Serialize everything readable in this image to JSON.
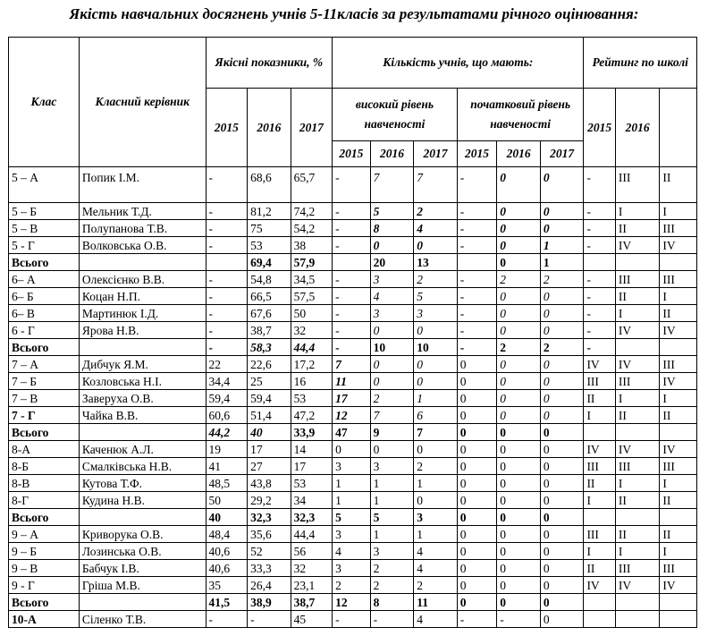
{
  "title": "Якість навчальних  досягнень учнів 5-11класів за результатами річного оцінювання:",
  "headers": {
    "class": "Клас",
    "teacher": "Класний керівник",
    "quality": "Якісні показники, %",
    "count": "Кількість учнів, що мають:",
    "high": "високий рівень навченості",
    "initial": "початковий рівень навченості",
    "rating": "Рейтинг по школі",
    "y2015": "2015",
    "y2016": "2016",
    "y2017": "2017",
    "r2015": "2015"
  },
  "rows": [
    {
      "c": [
        "5 – А",
        "Попик І.М.",
        "-",
        "68,6",
        "65,7",
        "-",
        "7",
        "7",
        "-",
        "0",
        "0",
        "-",
        "ІІІ",
        "ІІ"
      ],
      "s": [
        "",
        "",
        "",
        "",
        "",
        "",
        "i",
        "i",
        "",
        "bi",
        "bi",
        "",
        "",
        ""
      ],
      "tall": true
    },
    {
      "c": [
        "5 – Б",
        "Мельник Т.Д.",
        "-",
        "81,2",
        "74,2",
        "-",
        "5",
        "2",
        "-",
        "0",
        "0",
        "-",
        "І",
        "І"
      ],
      "s": [
        "",
        "",
        "",
        "",
        "",
        "",
        "bi",
        "bi",
        "",
        "bi",
        "bi",
        "",
        "",
        ""
      ]
    },
    {
      "c": [
        "5 – В",
        "Полупанова Т.В.",
        "-",
        "75",
        "54,2",
        "-",
        "8",
        "4",
        "-",
        "0",
        "0",
        "-",
        "ІІ",
        "ІІІ"
      ],
      "s": [
        "",
        "",
        "",
        "",
        "",
        "",
        "bi",
        "bi",
        "",
        "bi",
        "bi",
        "",
        "",
        ""
      ]
    },
    {
      "c": [
        "5 -  Г",
        "Волковська О.В.",
        "-",
        "53",
        "38",
        "-",
        "0",
        "0",
        "-",
        "0",
        "1",
        "-",
        "IV",
        "IV"
      ],
      "s": [
        "",
        "",
        "",
        "",
        "",
        "",
        "bi",
        "bi",
        "",
        "bi",
        "bi",
        "",
        "",
        ""
      ]
    },
    {
      "c": [
        "Всього",
        "",
        "",
        "69,4",
        "57,9",
        "",
        "20",
        "13",
        "",
        "0",
        "1",
        "",
        "",
        ""
      ],
      "s": [
        "b",
        "",
        "",
        "",
        "",
        "",
        "b",
        "b",
        "",
        "b",
        "b",
        "",
        "",
        ""
      ]
    },
    {
      "c": [
        "6– А",
        "Олексієнко В.В.",
        "-",
        "54,8",
        "34,5",
        "-",
        "3",
        "2",
        "-",
        "2",
        "2",
        "-",
        "ІІІ",
        "ІІІ"
      ],
      "s": [
        "",
        "",
        "",
        "",
        "",
        "",
        "i",
        "i",
        "",
        "i",
        "i",
        "",
        "",
        ""
      ]
    },
    {
      "c": [
        "6– Б",
        "Коцан Н.П.",
        "-",
        "66,5",
        "57,5",
        "-",
        "4",
        "5",
        "-",
        "0",
        "0",
        "-",
        "ІІ",
        "І"
      ],
      "s": [
        "",
        "",
        "",
        "",
        "",
        "",
        "i",
        "i",
        "",
        "i",
        "i",
        "",
        "",
        ""
      ]
    },
    {
      "c": [
        "6– В",
        "Мартинюк І.Д.",
        "-",
        "67,6",
        "50",
        "-",
        "3",
        "3",
        "-",
        "0",
        "0",
        "-",
        "І",
        "ІІ"
      ],
      "s": [
        "",
        "",
        "",
        "",
        "",
        "",
        "i",
        "i",
        "",
        "i",
        "i",
        "",
        "",
        ""
      ]
    },
    {
      "c": [
        "6 - Г",
        "Ярова Н.В.",
        "-",
        "38,7",
        "32",
        "-",
        "0",
        "0",
        "-",
        "0",
        "0",
        "-",
        "IV",
        "IV"
      ],
      "s": [
        "",
        "",
        "",
        "",
        "",
        "",
        "i",
        "i",
        "",
        "i",
        "i",
        "",
        "",
        ""
      ]
    },
    {
      "c": [
        "Всього",
        "",
        "-",
        "58,3",
        "44,4",
        "-",
        "10",
        "10",
        "-",
        "2",
        "2",
        "-",
        "",
        ""
      ],
      "s": [
        "b",
        "",
        "",
        "bi",
        "bi",
        "",
        "b",
        "b",
        "",
        "b",
        "b",
        "",
        "",
        ""
      ]
    },
    {
      "c": [
        "7 – А",
        "Дибчук Я.М.",
        "22",
        "22,6",
        "17,2",
        "7",
        "0",
        "0",
        "0",
        "0",
        "0",
        "IV",
        "IV",
        "ІІІ"
      ],
      "s": [
        "",
        "",
        "",
        "",
        "",
        "bi",
        "i",
        "i",
        "",
        "i",
        "i",
        "",
        "",
        ""
      ]
    },
    {
      "c": [
        "7 – Б",
        "Козловська Н.І.",
        "34,4",
        "25",
        "16",
        "11",
        "0",
        "0",
        "0",
        "0",
        "0",
        "ІІІ",
        "ІІІ",
        "IV"
      ],
      "s": [
        "",
        "",
        "",
        "",
        "",
        "bi",
        "i",
        "i",
        "",
        "i",
        "i",
        "",
        "",
        ""
      ]
    },
    {
      "c": [
        "7 – В",
        "Заверуха О.В.",
        "59,4",
        "59,4",
        "53",
        "17",
        "2",
        "1",
        "0",
        "0",
        "0",
        "ІІ",
        "І",
        "І"
      ],
      "s": [
        "",
        "",
        "",
        "",
        "",
        "bi",
        "i",
        "i",
        "",
        "i",
        "i",
        "",
        "",
        ""
      ]
    },
    {
      "c": [
        "7 -  Г",
        "Чайка В.В.",
        "60,6",
        "51,4",
        "47,2",
        "12",
        "7",
        "6",
        "0",
        "0",
        "0",
        "І",
        "ІІ",
        "ІІ"
      ],
      "s": [
        "b",
        "",
        "",
        "",
        "",
        "bi",
        "i",
        "i",
        "",
        "i",
        "i",
        "",
        "",
        ""
      ]
    },
    {
      "c": [
        "Всього",
        "",
        "44,2",
        "40",
        "33,9",
        "47",
        "9",
        "7",
        "0",
        "0",
        "0",
        "",
        "",
        ""
      ],
      "s": [
        "b",
        "",
        "bi",
        "bi",
        "b",
        "b",
        "b",
        "b",
        "b",
        "b",
        "b",
        "",
        "",
        ""
      ]
    },
    {
      "c": [
        "8-А",
        "Каченюк А.Л.",
        "19",
        "17",
        "14",
        "0",
        "0",
        "0",
        "0",
        "0",
        "0",
        "IV",
        "IV",
        "IV"
      ],
      "s": [
        "",
        "",
        "",
        "",
        "",
        "",
        "",
        "",
        "",
        "",
        "",
        "",
        "",
        ""
      ]
    },
    {
      "c": [
        "8-Б",
        "Смалківська Н.В.",
        "41",
        "27",
        "17",
        "3",
        "3",
        "2",
        "0",
        "0",
        "0",
        "ІІІ",
        "ІІІ",
        "ІІІ"
      ],
      "s": [
        "",
        "",
        "",
        "",
        "",
        "",
        "",
        "",
        "",
        "",
        "",
        "",
        "",
        ""
      ]
    },
    {
      "c": [
        "8-В",
        "Кутова Т.Ф.",
        "48,5",
        "43,8",
        "53",
        "1",
        "1",
        "1",
        "0",
        "0",
        "0",
        "ІІ",
        "І",
        "І"
      ],
      "s": [
        "",
        "",
        "",
        "",
        "",
        "",
        "",
        "",
        "",
        "",
        "",
        "",
        "",
        ""
      ]
    },
    {
      "c": [
        "8-Г",
        "Кудина Н.В.",
        "50",
        "29,2",
        "34",
        "1",
        "1",
        "0",
        "0",
        "0",
        "0",
        "І",
        "ІІ",
        "ІІ"
      ],
      "s": [
        "",
        "",
        "",
        "",
        "",
        "",
        "",
        "",
        "",
        "",
        "",
        "",
        "",
        ""
      ]
    },
    {
      "c": [
        "Всього",
        "",
        "40",
        "32,3",
        "32,3",
        "5",
        "5",
        "3",
        "0",
        "0",
        "0",
        "",
        "",
        ""
      ],
      "s": [
        "b",
        "",
        "b",
        "b",
        "b",
        "b",
        "b",
        "b",
        "b",
        "b",
        "b",
        "",
        "",
        ""
      ]
    },
    {
      "c": [
        "9 – А",
        "Криворука О.В.",
        "48,4",
        "35,6",
        "44,4",
        "3",
        "1",
        "1",
        "0",
        "0",
        "0",
        "ІІІ",
        "ІІ",
        "ІІ"
      ],
      "s": [
        "",
        "",
        "",
        "",
        "",
        "",
        "",
        "",
        "",
        "",
        "",
        "",
        "",
        ""
      ]
    },
    {
      "c": [
        "9 – Б",
        "Лозинська О.В.",
        "40,6",
        "52",
        "56",
        "4",
        "3",
        "4",
        "0",
        "0",
        "0",
        "І",
        "І",
        "І"
      ],
      "s": [
        "",
        "",
        "",
        "",
        "",
        "",
        "",
        "",
        "",
        "",
        "",
        "",
        "",
        ""
      ]
    },
    {
      "c": [
        "9 – В",
        "Бабчук І.В.",
        "40,6",
        "33,3",
        "32",
        "3",
        "2",
        "4",
        "0",
        "0",
        "0",
        "ІІ",
        "ІІІ",
        "ІІІ"
      ],
      "s": [
        "",
        "",
        "",
        "",
        "",
        "",
        "",
        "",
        "",
        "",
        "",
        "",
        "",
        ""
      ]
    },
    {
      "c": [
        "9 - Г",
        "Гріша М.В.",
        "35",
        "26,4",
        "23,1",
        "2",
        "2",
        "2",
        "0",
        "0",
        "0",
        "IV",
        "IV",
        "IV"
      ],
      "s": [
        "",
        "",
        "",
        "",
        "",
        "",
        "",
        "",
        "",
        "",
        "",
        "",
        "",
        ""
      ]
    },
    {
      "c": [
        "Всього",
        "",
        "41,5",
        "38,9",
        "38,7",
        "12",
        "8",
        "11",
        "0",
        "0",
        "0",
        "",
        "",
        ""
      ],
      "s": [
        "b",
        "",
        "b",
        "b",
        "b",
        "b",
        "b",
        "b",
        "b",
        "b",
        "b",
        "",
        "",
        ""
      ]
    },
    {
      "c": [
        "10-А",
        "Сіленко Т.В.",
        "-",
        "-",
        "45",
        "-",
        "-",
        "4",
        "-",
        "-",
        "0",
        "",
        "",
        ""
      ],
      "s": [
        "b",
        "",
        "",
        "",
        "",
        "",
        "",
        "",
        "",
        "",
        "",
        "",
        "",
        ""
      ]
    }
  ]
}
